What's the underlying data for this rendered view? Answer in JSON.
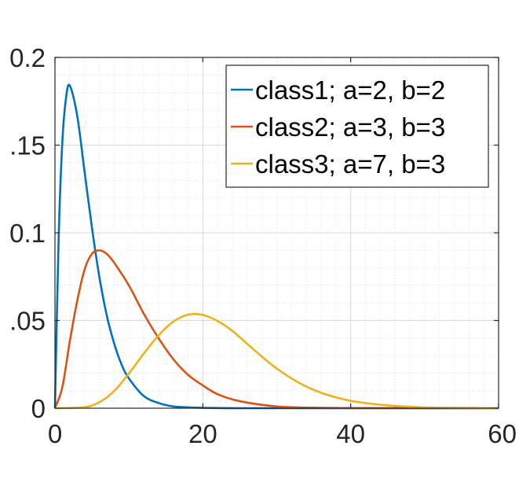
{
  "chart_data": {
    "type": "line",
    "title": "",
    "xlabel": "",
    "ylabel": "",
    "xlim": [
      0,
      60
    ],
    "ylim": [
      0,
      0.2
    ],
    "x_ticks": [
      0,
      20,
      40,
      60
    ],
    "x_tick_labels": [
      "0",
      "20",
      "40",
      "60"
    ],
    "y_ticks": [
      0,
      0.05,
      0.1,
      0.15,
      0.2
    ],
    "y_tick_labels": [
      "0",
      ".05",
      "0.1",
      ".15",
      "0.2"
    ],
    "grid": true,
    "minor_grid": true,
    "box": true,
    "legend_position": "top-right",
    "series": [
      {
        "name": "class1; a=2, b=2",
        "color": "#0072BD",
        "peak_x": 2,
        "peak_y": 0.184,
        "x": [
          0,
          0.5,
          1,
          1.5,
          2,
          3,
          4,
          5,
          6,
          7,
          8,
          9,
          10,
          12,
          14,
          16,
          18,
          20,
          25,
          30,
          40,
          60
        ],
        "y": [
          0,
          0.097,
          0.152,
          0.177,
          0.184,
          0.167,
          0.135,
          0.103,
          0.075,
          0.053,
          0.037,
          0.025,
          0.017,
          0.007,
          0.003,
          0.001,
          0.0005,
          0.0002,
          0,
          0,
          0,
          0
        ]
      },
      {
        "name": "class2; a=3, b=3",
        "color": "#D95319",
        "peak_x": 6,
        "peak_y": 0.09,
        "x": [
          0,
          1,
          2,
          3,
          4,
          5,
          6,
          7,
          8,
          10,
          12,
          14,
          16,
          18,
          20,
          22,
          25,
          30,
          35,
          40,
          50,
          60
        ],
        "y": [
          0,
          0.012,
          0.038,
          0.061,
          0.079,
          0.088,
          0.09,
          0.088,
          0.083,
          0.07,
          0.054,
          0.04,
          0.028,
          0.019,
          0.013,
          0.008,
          0.004,
          0.001,
          0.0003,
          0.0001,
          0,
          0
        ]
      },
      {
        "name": "class3; a=7, b=3",
        "color": "#EDB120",
        "peak_x": 18,
        "peak_y": 0.053,
        "x": [
          0,
          4,
          6,
          8,
          10,
          12,
          14,
          16,
          18,
          20,
          22,
          24,
          26,
          28,
          30,
          33,
          36,
          40,
          45,
          50,
          55,
          60
        ],
        "y": [
          0,
          0.0006,
          0.0034,
          0.0098,
          0.0198,
          0.031,
          0.0415,
          0.0493,
          0.0533,
          0.0532,
          0.0497,
          0.0441,
          0.0367,
          0.0294,
          0.0226,
          0.0145,
          0.0088,
          0.0042,
          0.0016,
          0.0005,
          0.0002,
          0
        ]
      }
    ]
  }
}
